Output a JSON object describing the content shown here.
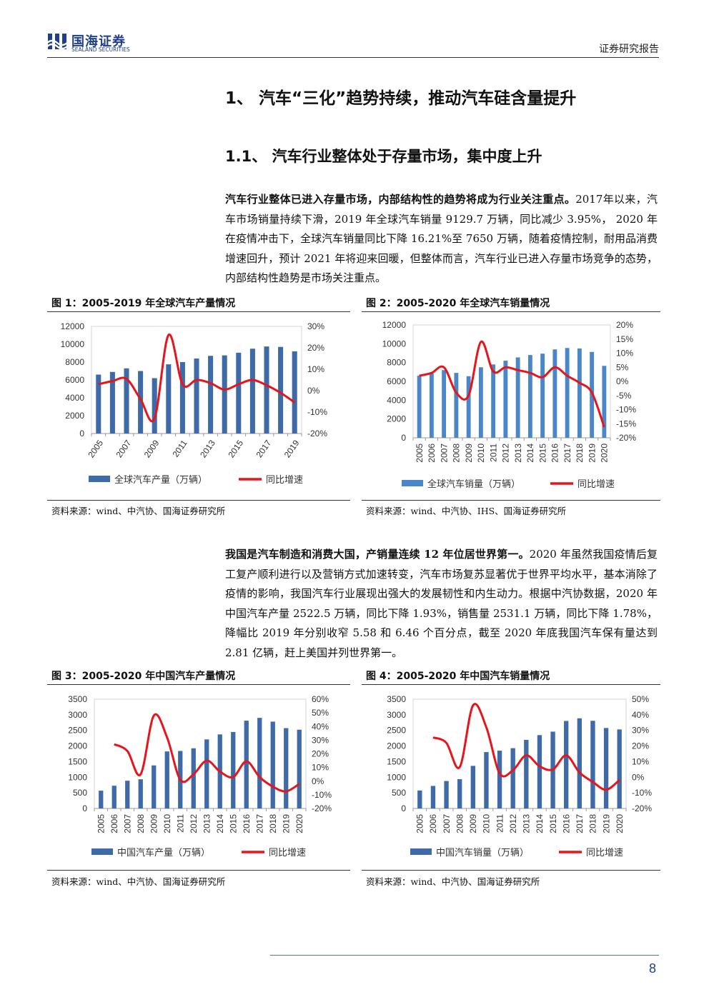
{
  "header": {
    "logo_cn": "国海证券",
    "logo_en": "SEALAND SECURITIES",
    "report_type": "证券研究报告"
  },
  "section": {
    "h1": "1、 汽车“三化”趋势持续，推动汽车硅含量提升",
    "h2": "1.1、 汽车行业整体处于存量市场，集中度上升"
  },
  "paragraphs": [
    {
      "bold": "汽车行业整体已进入存量市场，内部结构性的趋势将成为行业关注重点。",
      "text": "2017年以来，汽车市场销量持续下滑，2019 年全球汽车销量 9129.7 万辆，同比减少 3.95%， 2020 年在疫情冲击下，全球汽车销量同比下降 16.21%至 7650 万辆，随着疫情控制，耐用品消费增速回升，预计 2021 年将迎来回暖，但整体而言，汽车行业已进入存量市场竞争的态势，内部结构性趋势是市场关注重点。"
    },
    {
      "bold": "我国是汽车制造和消费大国，产销量连续 12 年位居世界第一。",
      "text": "2020 年虽然我国疫情后复工复产顺利进行以及营销方式加速转变，汽车市场复苏显著优于世界平均水平，基本消除了疫情的影响，我国汽车行业展现出强大的发展韧性和内生动力。根据中汽协数据，2020 年中国汽车产量 2522.5 万辆，同比下降 1.93%，销售量 2531.1 万辆，同比下降 1.78%，降幅比 2019 年分别收窄 5.58 和 6.46 个百分点，截至 2020 年底我国汽车保有量达到 2.81 亿辆，赶上美国并列世界第一。"
    }
  ],
  "figures": [
    {
      "title": "图 1：2005-2019 年全球汽车产量情况",
      "source": "资料来源：wind、中汽协、国海证券研究所"
    },
    {
      "title": "图 2：2005-2020 年全球汽车销量情况",
      "source": "资料来源：wind、中汽协、IHS、国海证券研究所"
    },
    {
      "title": "图 3：2005-2020 年中国汽车产量情况",
      "source": "资料来源：wind、中汽协、国海证券研究所"
    },
    {
      "title": "图 4：2005-2020 年中国汽车销量情况",
      "source": "资料来源：wind、中汽协、国海证券研究所"
    }
  ],
  "chart_data": [
    {
      "type": "bar",
      "bar_color": "#3e6aa8",
      "line_color": "#e8141a",
      "x": [
        2005,
        2006,
        2007,
        2008,
        2009,
        2010,
        2011,
        2012,
        2013,
        2014,
        2015,
        2016,
        2017,
        2018,
        2019
      ],
      "x_tick_labels": [
        "2005",
        "2007",
        "2009",
        "2011",
        "2013",
        "2015",
        "2017",
        "2019"
      ],
      "x_tick_rotation": -55,
      "series": [
        {
          "name": "全球汽车产量（万辆）",
          "axis": "left",
          "values": [
            6600,
            6900,
            7300,
            7000,
            6200,
            7750,
            8000,
            8400,
            8700,
            8750,
            9050,
            9500,
            9750,
            9700,
            9200
          ]
        },
        {
          "name": "同比增速",
          "axis": "right",
          "kind": "line",
          "values": [
            0.03,
            0.045,
            0.055,
            -0.04,
            -0.13,
            0.26,
            0.03,
            0.05,
            0.035,
            0.005,
            0.03,
            0.05,
            0.025,
            -0.01,
            -0.055
          ]
        }
      ],
      "yleft": {
        "min": 0,
        "max": 12000,
        "ticks": [
          "0",
          "2000",
          "4000",
          "6000",
          "8000",
          "10000",
          "12000"
        ]
      },
      "yright": {
        "min": -0.2,
        "max": 0.3,
        "ticks": [
          "-20%",
          "-10%",
          "0%",
          "10%",
          "20%",
          "30%"
        ]
      },
      "legend": "bottom"
    },
    {
      "type": "bar",
      "bar_color": "#4a86c8",
      "line_color": "#e8141a",
      "x": [
        2005,
        2006,
        2007,
        2008,
        2009,
        2010,
        2011,
        2012,
        2013,
        2014,
        2015,
        2016,
        2017,
        2018,
        2019,
        2020
      ],
      "x_tick_labels": [
        "2005",
        "2006",
        "2007",
        "2008",
        "2009",
        "2010",
        "2011",
        "2012",
        "2013",
        "2014",
        "2015",
        "2016",
        "2017",
        "2018",
        "2019",
        "2020"
      ],
      "x_tick_rotation": -90,
      "series": [
        {
          "name": "全球汽车销量（万辆）",
          "axis": "left",
          "values": [
            6600,
            6850,
            7200,
            6900,
            6550,
            7500,
            7800,
            8200,
            8550,
            8800,
            8950,
            9400,
            9550,
            9500,
            9130,
            7650
          ]
        },
        {
          "name": "同比增速",
          "axis": "right",
          "kind": "line",
          "values": [
            0.02,
            0.03,
            0.05,
            -0.04,
            -0.05,
            0.14,
            0.035,
            0.05,
            0.04,
            0.03,
            0.015,
            0.05,
            0.02,
            -0.005,
            -0.04,
            -0.162
          ]
        }
      ],
      "yleft": {
        "min": 0,
        "max": 12000,
        "ticks": [
          "0",
          "2000",
          "4000",
          "6000",
          "8000",
          "10000",
          "12000"
        ]
      },
      "yright": {
        "min": -0.2,
        "max": 0.2,
        "ticks": [
          "-20%",
          "-15%",
          "-10%",
          "-5%",
          "0%",
          "5%",
          "10%",
          "15%",
          "20%"
        ]
      },
      "legend": "bottom"
    },
    {
      "type": "bar",
      "bar_color": "#3e6aa8",
      "line_color": "#e8141a",
      "x": [
        2005,
        2006,
        2007,
        2008,
        2009,
        2010,
        2011,
        2012,
        2013,
        2014,
        2015,
        2016,
        2017,
        2018,
        2019,
        2020
      ],
      "x_tick_labels": [
        "2005",
        "2006",
        "2007",
        "2008",
        "2009",
        "2010",
        "2011",
        "2012",
        "2013",
        "2014",
        "2015",
        "2016",
        "2017",
        "2018",
        "2019",
        "2020"
      ],
      "x_tick_rotation": -90,
      "series": [
        {
          "name": "中国汽车产量（万辆）",
          "axis": "left",
          "values": [
            570,
            728,
            888,
            935,
            1379,
            1827,
            1842,
            1927,
            2212,
            2372,
            2450,
            2812,
            2902,
            2781,
            2572,
            2523
          ]
        },
        {
          "name": "同比增速",
          "axis": "right",
          "kind": "line",
          "values": [
            null,
            0.27,
            0.22,
            0.05,
            0.48,
            0.32,
            0.01,
            0.05,
            0.15,
            0.07,
            0.03,
            0.145,
            0.03,
            -0.04,
            -0.075,
            -0.02
          ]
        }
      ],
      "yleft": {
        "min": 0,
        "max": 3500,
        "ticks": [
          "0",
          "500",
          "1000",
          "1500",
          "2000",
          "2500",
          "3000",
          "3500"
        ]
      },
      "yright": {
        "min": -0.2,
        "max": 0.6,
        "ticks": [
          "-20%",
          "-10%",
          "0%",
          "10%",
          "20%",
          "30%",
          "40%",
          "50%",
          "60%"
        ]
      },
      "legend": "bottom"
    },
    {
      "type": "bar",
      "bar_color": "#3e6aa8",
      "line_color": "#e8141a",
      "x": [
        2005,
        2006,
        2007,
        2008,
        2009,
        2010,
        2011,
        2012,
        2013,
        2014,
        2015,
        2016,
        2017,
        2018,
        2019,
        2020
      ],
      "x_tick_labels": [
        "2005",
        "2006",
        "2007",
        "2008",
        "2009",
        "2010",
        "2011",
        "2012",
        "2013",
        "2014",
        "2015",
        "2016",
        "2017",
        "2018",
        "2019",
        "2020"
      ],
      "x_tick_rotation": -90,
      "series": [
        {
          "name": "中国汽车销量（万辆）",
          "axis": "left",
          "values": [
            576,
            722,
            879,
            938,
            1364,
            1806,
            1851,
            1931,
            2198,
            2349,
            2460,
            2803,
            2888,
            2808,
            2577,
            2531
          ]
        },
        {
          "name": "同比增速",
          "axis": "right",
          "kind": "line",
          "values": [
            null,
            0.255,
            0.22,
            0.065,
            0.46,
            0.32,
            0.025,
            0.045,
            0.14,
            0.07,
            0.05,
            0.14,
            0.03,
            -0.03,
            -0.08,
            -0.018
          ]
        }
      ],
      "yleft": {
        "min": 0,
        "max": 3500,
        "ticks": [
          "0",
          "500",
          "1000",
          "1500",
          "2000",
          "2500",
          "3000",
          "3500"
        ]
      },
      "yright": {
        "min": -0.2,
        "max": 0.5,
        "ticks": [
          "-20%",
          "-10%",
          "0%",
          "10%",
          "20%",
          "30%",
          "40%",
          "50%"
        ]
      },
      "legend": "bottom"
    }
  ],
  "footer": {
    "page_number": "8"
  }
}
